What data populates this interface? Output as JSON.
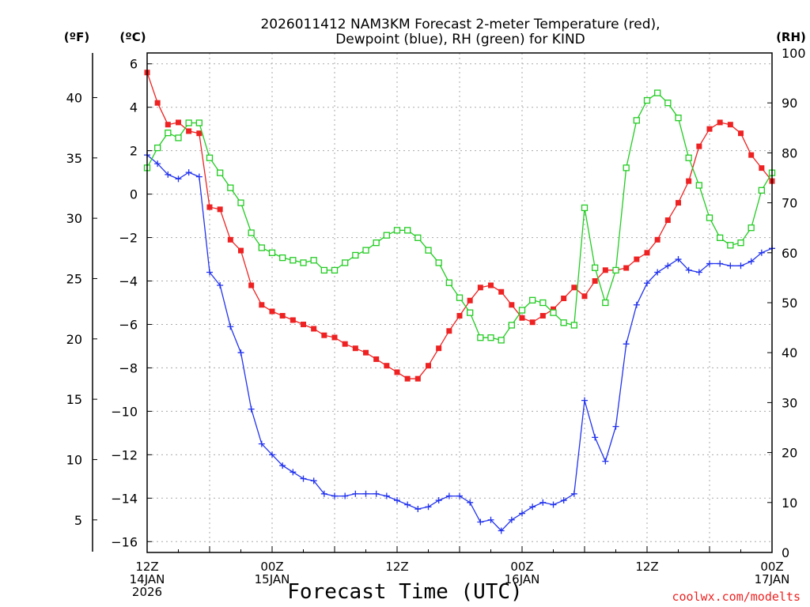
{
  "chart_data": {
    "type": "line",
    "title_line1": "2026011412 NAM3KM Forecast 2-meter Temperature (red),",
    "title_line2": "Dewpoint (blue), RH (green) for KIND",
    "unit_left_f": "(ºF)",
    "unit_left_c": "(ºC)",
    "unit_right": "(RH)",
    "xlabel": "Forecast Time (UTC)",
    "credit": "coolwx.com/modelts",
    "x_range": [
      0,
      60
    ],
    "celsius_range": [
      -16.5,
      6.5
    ],
    "rh_range": [
      0,
      100
    ],
    "x_ticks": [
      {
        "x": 0,
        "line1": "12Z",
        "line2": "14JAN",
        "line3": "2026"
      },
      {
        "x": 12,
        "line1": "00Z",
        "line2": "15JAN",
        "line3": ""
      },
      {
        "x": 24,
        "line1": "12Z",
        "line2": "",
        "line3": ""
      },
      {
        "x": 36,
        "line1": "00Z",
        "line2": "16JAN",
        "line3": ""
      },
      {
        "x": 48,
        "line1": "12Z",
        "line2": "",
        "line3": ""
      },
      {
        "x": 60,
        "line1": "00Z",
        "line2": "17JAN",
        "line3": ""
      }
    ],
    "celsius_ticks": [
      "6",
      "4",
      "2",
      "0",
      "−2",
      "−4",
      "−6",
      "−8",
      "−10",
      "−12",
      "−14",
      "−16"
    ],
    "celsius_tick_values": [
      6,
      4,
      2,
      0,
      -2,
      -4,
      -6,
      -8,
      -10,
      -12,
      -14,
      -16
    ],
    "fahrenheit_ticks": [
      "40",
      "35",
      "30",
      "25",
      "20",
      "15",
      "10",
      "5"
    ],
    "fahrenheit_tick_values": [
      40,
      35,
      30,
      25,
      20,
      15,
      10,
      5
    ],
    "rh_ticks": [
      "100",
      "90",
      "80",
      "70",
      "60",
      "50",
      "40",
      "30",
      "20",
      "10",
      "0"
    ],
    "rh_tick_values": [
      100,
      90,
      80,
      70,
      60,
      50,
      40,
      30,
      20,
      10,
      0
    ],
    "x": [
      0,
      1,
      2,
      3,
      4,
      5,
      6,
      7,
      8,
      9,
      10,
      11,
      12,
      13,
      14,
      15,
      16,
      17,
      18,
      19,
      20,
      21,
      22,
      23,
      24,
      25,
      26,
      27,
      28,
      29,
      30,
      31,
      32,
      33,
      34,
      35,
      36,
      37,
      38,
      39,
      40,
      41,
      42,
      43,
      44,
      45,
      46,
      47,
      48,
      49,
      50,
      51,
      52,
      53,
      54,
      55,
      56,
      57,
      58,
      59,
      60
    ],
    "series": [
      {
        "name": "2-meter Temperature",
        "axis": "celsius",
        "color": "#ee2222",
        "marker": "filled-square",
        "values": [
          5.6,
          4.2,
          3.2,
          3.3,
          2.9,
          2.8,
          -0.6,
          -0.7,
          -2.1,
          -2.6,
          -4.2,
          -5.1,
          -5.4,
          -5.6,
          -5.8,
          -6,
          -6.2,
          -6.5,
          -6.6,
          -6.9,
          -7.1,
          -7.3,
          -7.6,
          -7.9,
          -8.2,
          -8.5,
          -8.5,
          -7.9,
          -7.1,
          -6.3,
          -5.6,
          -4.9,
          -4.3,
          -4.2,
          -4.5,
          -5.1,
          -5.7,
          -5.9,
          -5.6,
          -5.3,
          -4.8,
          -4.3,
          -4.7,
          -4,
          -3.5,
          -3.5,
          -3.4,
          -3,
          -2.7,
          -2.1,
          -1.2,
          -0.4,
          0.6,
          2.2,
          3,
          3.3,
          3.2,
          2.8,
          1.8,
          1.2,
          0.6
        ]
      },
      {
        "name": "Dewpoint",
        "axis": "celsius",
        "color": "#2233ee",
        "marker": "plus",
        "values": [
          1.8,
          1.4,
          0.9,
          0.7,
          1,
          0.8,
          -3.6,
          -4.2,
          -6.1,
          -7.3,
          -9.9,
          -11.5,
          -12,
          -12.5,
          -12.8,
          -13.1,
          -13.2,
          -13.8,
          -13.9,
          -13.9,
          -13.8,
          -13.8,
          -13.8,
          -13.9,
          -14.1,
          -14.3,
          -14.5,
          -14.4,
          -14.1,
          -13.9,
          -13.9,
          -14.2,
          -15.1,
          -15,
          -15.5,
          -15,
          -14.7,
          -14.4,
          -14.2,
          -14.3,
          -14.1,
          -13.8,
          -9.5,
          -11.2,
          -12.3,
          -10.7,
          -6.9,
          -5.1,
          -4.1,
          -3.6,
          -3.3,
          -3,
          -3.5,
          -3.6,
          -3.2,
          -3.2,
          -3.3,
          -3.3,
          -3.1,
          -2.7,
          -2.5
        ]
      },
      {
        "name": "RH",
        "axis": "rh",
        "color": "#22cc22",
        "marker": "open-square",
        "values": [
          77,
          81,
          84,
          83,
          86,
          86,
          79,
          76,
          73,
          70,
          64,
          61,
          60,
          59,
          58.5,
          58,
          58.5,
          56.5,
          56.5,
          58,
          59.5,
          60.5,
          62,
          63.5,
          64.5,
          64.5,
          63,
          60.5,
          58,
          54,
          51,
          48,
          43,
          43,
          42.5,
          45.5,
          48.5,
          50.5,
          50,
          48,
          46,
          45.5,
          69,
          57,
          50,
          56.5,
          77,
          86.5,
          90.5,
          92,
          90,
          87,
          79,
          73.5,
          67,
          63,
          61.5,
          62,
          65,
          72.5,
          76
        ]
      }
    ]
  }
}
